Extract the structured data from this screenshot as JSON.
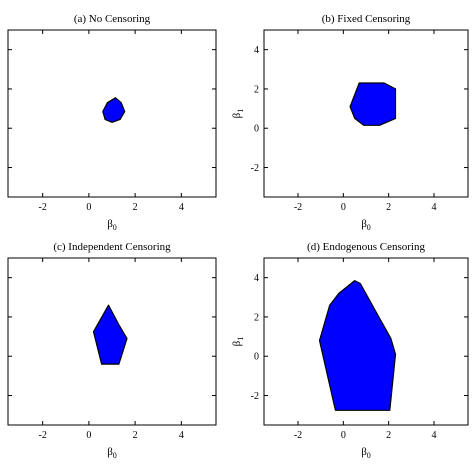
{
  "colors": {
    "region_fill": "#0000ff",
    "region_stroke": "#000000",
    "axis": "#000000"
  },
  "chart_data": [
    {
      "type": "area",
      "title": "(a) No Censoring",
      "xlabel": {
        "main": "β",
        "sub": "0"
      },
      "ylabel": {
        "main": "",
        "sub": ""
      },
      "xlim": [
        -3.5,
        5.5
      ],
      "ylim": [
        -3.5,
        5
      ],
      "xticks": [
        -2,
        0,
        2,
        4
      ],
      "yticks": [
        -2,
        0,
        2,
        4
      ],
      "xtick_labels": [
        "-2",
        "0",
        "2",
        "4"
      ],
      "ytick_labels": [
        "",
        "",
        "",
        ""
      ],
      "grid": false,
      "region": [
        [
          0.6,
          0.85
        ],
        [
          0.8,
          1.3
        ],
        [
          1.15,
          1.55
        ],
        [
          1.4,
          1.3
        ],
        [
          1.55,
          0.85
        ],
        [
          1.35,
          0.45
        ],
        [
          1.0,
          0.3
        ],
        [
          0.7,
          0.45
        ]
      ]
    },
    {
      "type": "area",
      "title": "(b) Fixed Censoring",
      "xlabel": {
        "main": "β",
        "sub": "0"
      },
      "ylabel": {
        "main": "β",
        "sub": "1"
      },
      "xlim": [
        -3.5,
        5.5
      ],
      "ylim": [
        -3.5,
        5
      ],
      "xticks": [
        -2,
        0,
        2,
        4
      ],
      "yticks": [
        -2,
        0,
        2,
        4
      ],
      "xtick_labels": [
        "-2",
        "0",
        "2",
        "4"
      ],
      "ytick_labels": [
        "-2",
        "0",
        "2",
        "4"
      ],
      "grid": false,
      "region": [
        [
          0.3,
          1.1
        ],
        [
          0.7,
          2.3
        ],
        [
          1.8,
          2.3
        ],
        [
          2.3,
          2.0
        ],
        [
          2.3,
          0.5
        ],
        [
          1.6,
          0.15
        ],
        [
          0.9,
          0.15
        ],
        [
          0.5,
          0.5
        ]
      ]
    },
    {
      "type": "area",
      "title": "(c) Independent Censoring",
      "xlabel": {
        "main": "β",
        "sub": "0"
      },
      "ylabel": {
        "main": "",
        "sub": ""
      },
      "xlim": [
        -3.5,
        5.5
      ],
      "ylim": [
        -3.5,
        5
      ],
      "xticks": [
        -2,
        0,
        2,
        4
      ],
      "yticks": [
        -2,
        0,
        2,
        4
      ],
      "xtick_labels": [
        "-2",
        "0",
        "2",
        "4"
      ],
      "ytick_labels": [
        "",
        "",
        "",
        ""
      ],
      "grid": false,
      "region": [
        [
          0.2,
          1.25
        ],
        [
          0.85,
          2.6
        ],
        [
          1.3,
          1.6
        ],
        [
          1.65,
          0.9
        ],
        [
          1.3,
          -0.4
        ],
        [
          0.55,
          -0.4
        ]
      ]
    },
    {
      "type": "area",
      "title": "(d) Endogenous Censoring",
      "xlabel": {
        "main": "β",
        "sub": "0"
      },
      "ylabel": {
        "main": "β",
        "sub": "1"
      },
      "xlim": [
        -3.5,
        5.5
      ],
      "ylim": [
        -3.5,
        5
      ],
      "xticks": [
        -2,
        0,
        2,
        4
      ],
      "yticks": [
        -2,
        0,
        2,
        4
      ],
      "xtick_labels": [
        "-2",
        "0",
        "2",
        "4"
      ],
      "ytick_labels": [
        "-2",
        "0",
        "2",
        "4"
      ],
      "grid": false,
      "region": [
        [
          -1.05,
          0.8
        ],
        [
          -0.6,
          2.6
        ],
        [
          -0.2,
          3.2
        ],
        [
          0.5,
          3.85
        ],
        [
          0.75,
          3.7
        ],
        [
          2.1,
          0.9
        ],
        [
          2.3,
          0.1
        ],
        [
          2.05,
          -2.75
        ],
        [
          -0.35,
          -2.75
        ]
      ]
    }
  ]
}
